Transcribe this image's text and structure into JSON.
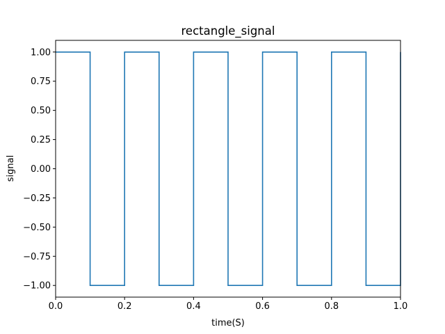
{
  "chart_data": {
    "type": "line",
    "title": "rectangle_signal",
    "xlabel": "time(S)",
    "ylabel": "signal",
    "xlim": [
      0.0,
      1.0
    ],
    "ylim": [
      -1.1,
      1.1
    ],
    "grid": false,
    "x_ticks": [
      "0.0",
      "0.2",
      "0.4",
      "0.6",
      "0.8",
      "1.0"
    ],
    "y_ticks": [
      "1.00",
      "0.75",
      "0.50",
      "0.25",
      "0.00",
      "−0.25",
      "−0.50",
      "−0.75",
      "−1.00"
    ],
    "series": [
      {
        "color": "#1f77b4",
        "x": [
          0.0,
          0.1,
          0.1,
          0.2,
          0.2,
          0.3,
          0.3,
          0.4,
          0.4,
          0.5,
          0.5,
          0.6,
          0.6,
          0.7,
          0.7,
          0.8,
          0.8,
          0.9,
          0.9,
          1.0,
          1.0
        ],
        "y": [
          1,
          1,
          -1,
          -1,
          1,
          1,
          -1,
          -1,
          1,
          1,
          -1,
          -1,
          1,
          1,
          -1,
          -1,
          1,
          1,
          -1,
          -1,
          1
        ]
      }
    ]
  },
  "colors": {
    "series": "#1f77b4",
    "axes": "#000000",
    "background": "#ffffff"
  }
}
